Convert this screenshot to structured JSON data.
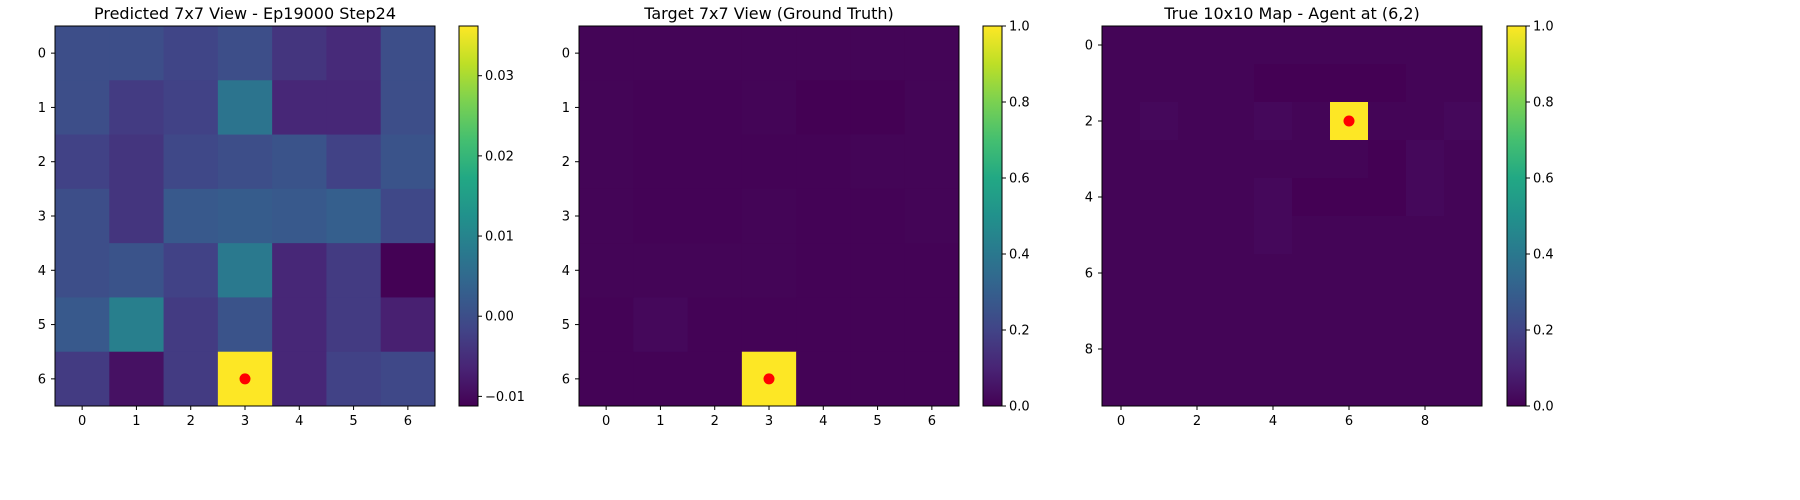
{
  "chart_data": [
    {
      "type": "heatmap",
      "title": "Predicted 7x7 View - Ep19000 Step24",
      "grid_size": 7,
      "x_ticks": [
        0,
        1,
        2,
        3,
        4,
        5,
        6
      ],
      "y_ticks": [
        0,
        1,
        2,
        3,
        4,
        5,
        6
      ],
      "colormap": "viridis",
      "vmin": -0.0112,
      "vmax": 0.0362,
      "colorbar_ticks": [
        -0.01,
        0.0,
        0.01,
        0.02,
        0.03
      ],
      "colorbar_tick_labels": [
        "−0.01",
        "0.00",
        "0.01",
        "0.02",
        "0.03"
      ],
      "agent_marker": {
        "x": 3,
        "y": 6,
        "color": "#ff0000"
      },
      "values": [
        [
          0.0,
          0.0,
          -0.0015,
          0.0,
          -0.004,
          -0.0055,
          0.0
        ],
        [
          0.0,
          -0.003,
          -0.002,
          0.007,
          -0.006,
          -0.006,
          0.0
        ],
        [
          -0.002,
          -0.004,
          -0.001,
          0.0,
          0.001,
          -0.002,
          0.001
        ],
        [
          0.0,
          -0.004,
          0.002,
          0.0025,
          0.002,
          0.003,
          -0.001
        ],
        [
          0.0,
          0.001,
          -0.002,
          0.008,
          -0.006,
          -0.003,
          -0.011
        ],
        [
          0.002,
          0.009,
          -0.003,
          0.001,
          -0.006,
          -0.003,
          -0.007
        ],
        [
          -0.003,
          -0.009,
          -0.003,
          0.0362,
          -0.006,
          -0.002,
          -0.001
        ]
      ]
    },
    {
      "type": "heatmap",
      "title": "Target 7x7 View (Ground Truth)",
      "grid_size": 7,
      "x_ticks": [
        0,
        1,
        2,
        3,
        4,
        5,
        6
      ],
      "y_ticks": [
        0,
        1,
        2,
        3,
        4,
        5,
        6
      ],
      "colormap": "viridis",
      "vmin": 0.0,
      "vmax": 1.0,
      "colorbar_ticks": [
        0.0,
        0.2,
        0.4,
        0.6,
        0.8,
        1.0
      ],
      "colorbar_tick_labels": [
        "0.0",
        "0.2",
        "0.4",
        "0.6",
        "0.8",
        "1.0"
      ],
      "agent_marker": {
        "x": 3,
        "y": 6,
        "color": "#ff0000"
      },
      "values": [
        [
          0.01,
          0.01,
          0.01,
          0.01,
          0.01,
          0.01,
          0.01
        ],
        [
          0.01,
          0.005,
          0.005,
          0.01,
          0.0,
          0.0,
          0.01
        ],
        [
          0.01,
          0.005,
          0.005,
          0.005,
          0.005,
          0.01,
          0.01
        ],
        [
          0.01,
          0.005,
          0.005,
          0.01,
          0.005,
          0.005,
          0.01
        ],
        [
          0.01,
          0.01,
          0.01,
          0.01,
          0.005,
          0.005,
          0.005
        ],
        [
          0.005,
          0.02,
          0.005,
          0.005,
          0.005,
          0.005,
          0.005
        ],
        [
          0.005,
          0.005,
          0.005,
          1.0,
          0.005,
          0.005,
          0.005
        ]
      ]
    },
    {
      "type": "heatmap",
      "title": "True 10x10 Map - Agent at (6,2)",
      "grid_size": 10,
      "x_ticks": [
        0,
        2,
        4,
        6,
        8
      ],
      "y_ticks": [
        0,
        2,
        4,
        6,
        8
      ],
      "colormap": "viridis",
      "vmin": 0.0,
      "vmax": 1.0,
      "colorbar_ticks": [
        0.0,
        0.2,
        0.4,
        0.6,
        0.8,
        1.0
      ],
      "colorbar_tick_labels": [
        "0.0",
        "0.2",
        "0.4",
        "0.6",
        "0.8",
        "1.0"
      ],
      "agent_marker": {
        "x": 6,
        "y": 2,
        "color": "#ff0000"
      },
      "values": [
        [
          0.01,
          0.01,
          0.01,
          0.01,
          0.01,
          0.01,
          0.01,
          0.01,
          0.01,
          0.01
        ],
        [
          0.01,
          0.01,
          0.01,
          0.01,
          0.0,
          0.0,
          0.0,
          0.0,
          0.01,
          0.01
        ],
        [
          0.01,
          0.02,
          0.01,
          0.01,
          0.02,
          0.01,
          1.0,
          0.01,
          0.01,
          0.02
        ],
        [
          0.01,
          0.01,
          0.01,
          0.01,
          0.01,
          0.01,
          0.01,
          0.0,
          0.02,
          0.01
        ],
        [
          0.01,
          0.01,
          0.01,
          0.01,
          0.02,
          0.0,
          0.0,
          0.0,
          0.02,
          0.01
        ],
        [
          0.01,
          0.01,
          0.01,
          0.01,
          0.02,
          0.01,
          0.01,
          0.01,
          0.01,
          0.01
        ],
        [
          0.01,
          0.01,
          0.01,
          0.01,
          0.01,
          0.01,
          0.01,
          0.01,
          0.01,
          0.01
        ],
        [
          0.01,
          0.01,
          0.01,
          0.01,
          0.01,
          0.01,
          0.01,
          0.01,
          0.01,
          0.01
        ],
        [
          0.01,
          0.01,
          0.01,
          0.01,
          0.01,
          0.01,
          0.01,
          0.01,
          0.01,
          0.01
        ],
        [
          0.01,
          0.01,
          0.01,
          0.01,
          0.01,
          0.01,
          0.01,
          0.01,
          0.01,
          0.01
        ]
      ]
    }
  ]
}
